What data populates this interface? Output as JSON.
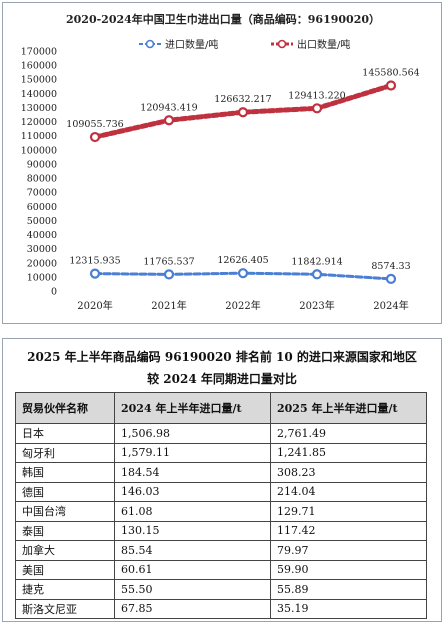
{
  "chart_data": {
    "type": "line",
    "title": "2020-2024年中国卫生巾进出口量（商品编码：96190020）",
    "categories": [
      "2020年",
      "2021年",
      "2022年",
      "2023年",
      "2024年"
    ],
    "ylim": [
      0,
      170000
    ],
    "yticks": [
      "0",
      "10000",
      "20000",
      "30000",
      "40000",
      "50000",
      "60000",
      "70000",
      "80000",
      "90000",
      "100000",
      "110000",
      "120000",
      "130000",
      "140000",
      "150000",
      "160000",
      "170000"
    ],
    "legend_position": "top",
    "series": [
      {
        "name": "进口数量/吨",
        "color": "#4a7fd4",
        "values": [
          12315.935,
          11765.537,
          12626.405,
          11842.914,
          8574.33
        ],
        "labels": [
          "12315.935",
          "11765.537",
          "12626.405",
          "11842.914",
          "8574.33"
        ]
      },
      {
        "name": "出口数量/吨",
        "color": "#c0313f",
        "values": [
          109055.736,
          120943.419,
          126632.217,
          129413.22,
          145580.564
        ],
        "labels": [
          "109055.736",
          "120943.419",
          "126632.217",
          "129413.220",
          "145580.564"
        ]
      }
    ]
  },
  "table": {
    "title_line1": "2025 年上半年商品编码 96190020 排名前 10 的进口来源国家和地区",
    "title_line2": "较 2024 年同期进口量对比",
    "headers": [
      "贸易伙伴名称",
      "2024 年上半年进口量/t",
      "2025 年上半年进口量/t"
    ],
    "rows": [
      [
        "日本",
        "1,506.98",
        "2,761.49"
      ],
      [
        "匈牙利",
        "1,579.11",
        "1,241.85"
      ],
      [
        "韩国",
        "184.54",
        "308.23"
      ],
      [
        "德国",
        "146.03",
        "214.04"
      ],
      [
        "中国台湾",
        "61.08",
        "129.71"
      ],
      [
        "泰国",
        "130.15",
        "117.42"
      ],
      [
        "加拿大",
        "85.54",
        "79.97"
      ],
      [
        "美国",
        "60.61",
        "59.90"
      ],
      [
        "捷克",
        "55.50",
        "55.89"
      ],
      [
        "斯洛文尼亚",
        "67.85",
        "35.19"
      ]
    ]
  }
}
